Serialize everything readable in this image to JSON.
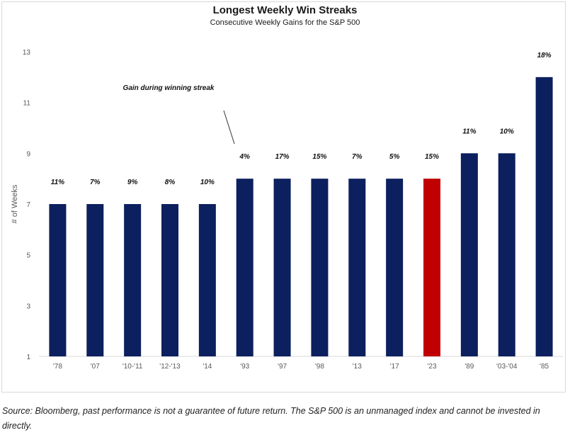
{
  "chart_data": {
    "type": "bar",
    "title": "Longest Weekly Win Streaks",
    "subtitle": "Consecutive Weekly Gains for the S&P 500",
    "ylabel": "# of Weeks",
    "xlabel": "",
    "ylim": [
      1,
      13
    ],
    "yticks": [
      1,
      3,
      5,
      7,
      9,
      11,
      13
    ],
    "grid": false,
    "categories": [
      "'78",
      "'07",
      "'10-'11",
      "'12-'13",
      "'14",
      "'93",
      "'97",
      "'98",
      "'13",
      "'17",
      "'23",
      "'89",
      "'03-'04",
      "'85"
    ],
    "values": [
      7,
      7,
      7,
      7,
      7,
      8,
      8,
      8,
      8,
      8,
      8,
      9,
      9,
      12
    ],
    "data_labels": [
      "11%",
      "7%",
      "9%",
      "8%",
      "10%",
      "4%",
      "17%",
      "15%",
      "7%",
      "5%",
      "15%",
      "11%",
      "10%",
      "18%"
    ],
    "highlight_index": 10,
    "colors": {
      "bar": "#0c1f5e",
      "highlight": "#c00000",
      "axis": "#d9d9d9",
      "text": "#595959"
    },
    "annotation": "Gain during winning streak"
  },
  "source_note": "Source: Bloomberg, past performance is not a guarantee of future return. The S&P 500 is an unmanaged index and cannot be invested in directly."
}
